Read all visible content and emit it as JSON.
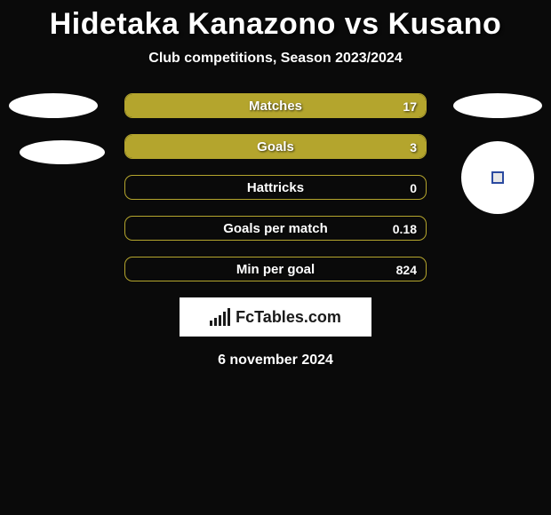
{
  "title": "Hidetaka Kanazono vs Kusano",
  "subtitle": "Club competitions, Season 2023/2024",
  "date": "6 november 2024",
  "logo_text": "FcTables.com",
  "colors": {
    "background": "#0a0a0a",
    "bar_fill": "#b4a52d",
    "bar_border": "#b4a52d",
    "text": "#ffffff",
    "logo_bg": "#ffffff",
    "logo_fg": "#1a1a1a"
  },
  "stats": [
    {
      "label": "Matches",
      "value_right": "17",
      "fill_pct": 100
    },
    {
      "label": "Goals",
      "value_right": "3",
      "fill_pct": 100
    },
    {
      "label": "Hattricks",
      "value_right": "0",
      "fill_pct": 0
    },
    {
      "label": "Goals per match",
      "value_right": "0.18",
      "fill_pct": 0
    },
    {
      "label": "Min per goal",
      "value_right": "824",
      "fill_pct": 0
    }
  ]
}
